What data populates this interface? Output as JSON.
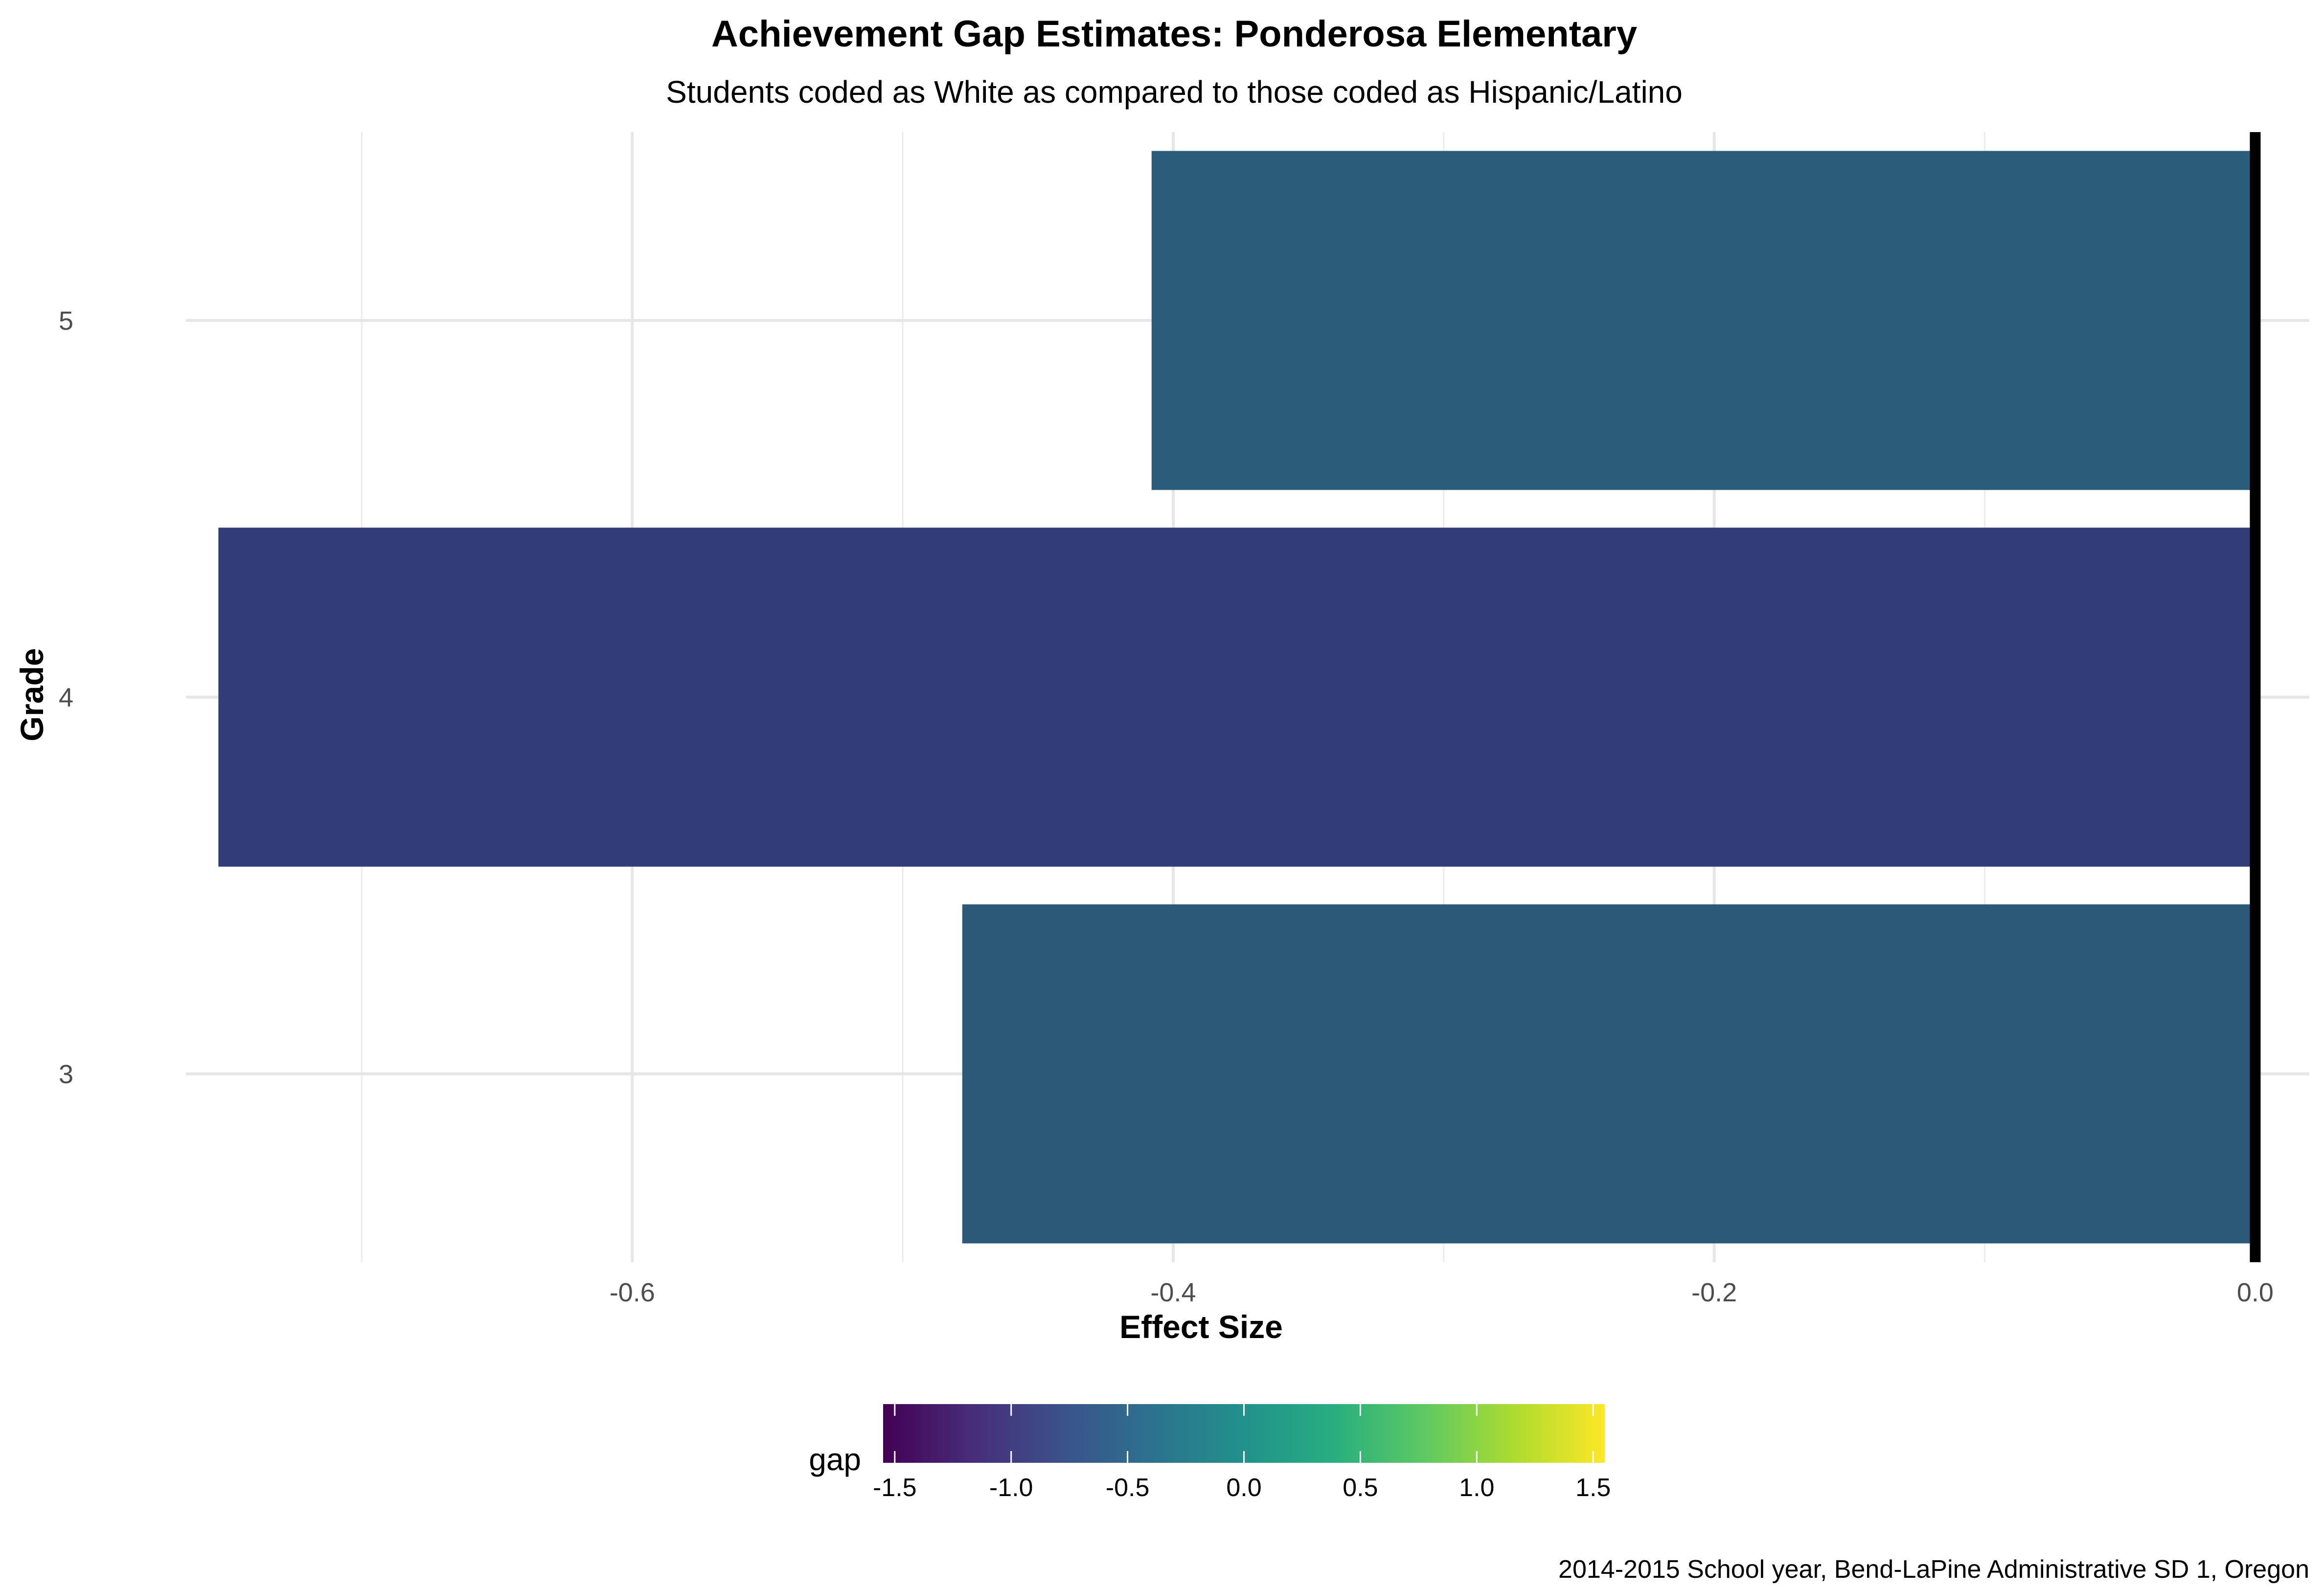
{
  "chart_data": {
    "type": "bar",
    "orientation": "horizontal",
    "title": "Achievement Gap Estimates: Ponderosa Elementary",
    "subtitle": "Students coded as White as compared to those coded as Hispanic/Latino",
    "xlabel": "Effect Size",
    "ylabel": "Grade",
    "categories": [
      "3",
      "4",
      "5"
    ],
    "values": [
      -0.478,
      -0.753,
      -0.408
    ],
    "xlim": [
      -0.765,
      0.02
    ],
    "x_ticks": [
      -0.6,
      -0.4,
      -0.2,
      0.0
    ],
    "x_tick_labels": [
      "-0.6",
      "-0.4",
      "-0.2",
      "0.0"
    ],
    "grid": true,
    "reference_line": 0,
    "legend": {
      "title": "gap",
      "type": "colorbar",
      "position": "bottom",
      "palette": "viridis",
      "range": [
        -1.55,
        1.55
      ],
      "ticks": [
        -1.5,
        -1.0,
        -0.5,
        0.0,
        0.5,
        1.0,
        1.5
      ],
      "tick_labels": [
        "-1.5",
        "-1.0",
        "-0.5",
        "0.0",
        "0.5",
        "1.0",
        "1.5"
      ]
    },
    "bar_colors": [
      "#2c5879",
      "#323d78",
      "#2a5c7b"
    ],
    "caption": "2014-2015 School year, Bend-LaPine Administrative SD 1, Oregon"
  }
}
